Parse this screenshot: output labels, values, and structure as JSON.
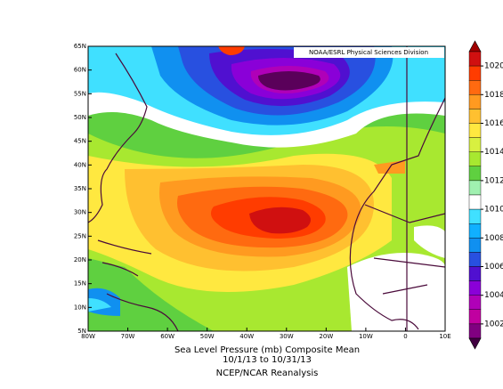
{
  "header": {
    "credit": "NOAA/ESRL Physical Sciences Division"
  },
  "axes": {
    "lat_labels": [
      "65N",
      "60N",
      "55N",
      "50N",
      "45N",
      "40N",
      "35N",
      "30N",
      "25N",
      "20N",
      "15N",
      "10N",
      "5N"
    ],
    "lon_labels": [
      "80W",
      "70W",
      "60W",
      "50W",
      "40W",
      "30W",
      "20W",
      "10W",
      "0",
      "10E"
    ]
  },
  "colorbar": {
    "labels": [
      "1020",
      "1018",
      "1016",
      "1014",
      "1012",
      "1010",
      "1008",
      "1006",
      "1004",
      "1002"
    ]
  },
  "caption": {
    "line1": "Sea Level Pressure (mb) Composite Mean",
    "line2": "10/1/13  to 10/31/13",
    "line3": "NCEP/NCAR Reanalysis"
  }
}
